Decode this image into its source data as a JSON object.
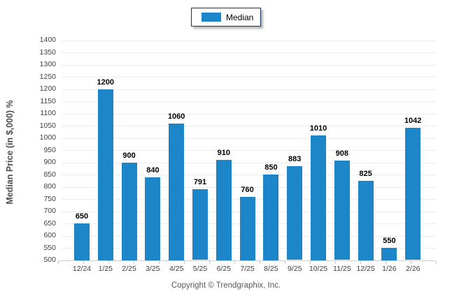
{
  "chart_data": {
    "type": "bar",
    "title": "",
    "legend": "Median",
    "legend_position": "top-center",
    "categories": [
      "12/24",
      "1/25",
      "2/25",
      "3/25",
      "4/25",
      "5/25",
      "6/25",
      "7/25",
      "8/25",
      "9/25",
      "10/25",
      "11/25",
      "12/25",
      "1/26",
      "2/26"
    ],
    "values": [
      650,
      1200,
      900,
      840,
      1060,
      791,
      910,
      760,
      850,
      883,
      1010,
      908,
      825,
      550,
      1042
    ],
    "xlabel": "",
    "ylabel": "Median Price (in $,000) %",
    "ylim": [
      500,
      1400
    ],
    "ytick_step": 50,
    "grid": true,
    "bar_color": "#1c86c9",
    "legend_border_color": "#17365d"
  },
  "footer": {
    "copyright": "Copyright © Trendgraphix, Inc."
  }
}
